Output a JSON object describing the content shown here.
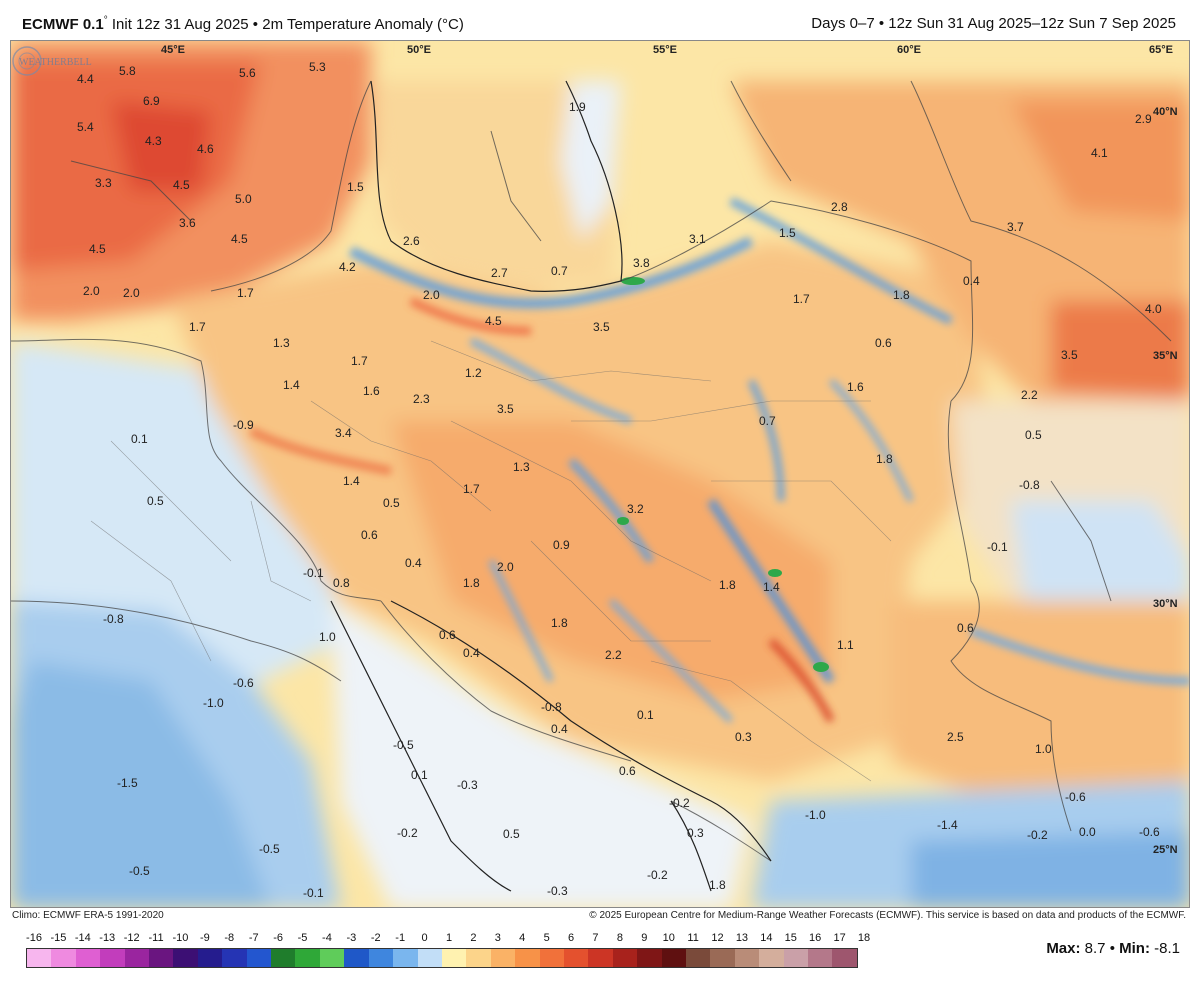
{
  "header": {
    "model": "ECMWF 0.1",
    "degree": "°",
    "title_rest": "Init 12z 31 Aug 2025 • 2m Temperature Anomaly (°C)",
    "period": "Days 0–7 • 12z Sun 31 Aug 2025–12z Sun 7 Sep 2025"
  },
  "map": {
    "lon_labels": [
      "45°E",
      "50°E",
      "55°E",
      "60°E",
      "65°E"
    ],
    "lat_labels": [
      "40°N",
      "35°N",
      "30°N",
      "25°N"
    ],
    "anomaly_labels": [
      {
        "v": "4.4"
      },
      {
        "v": "5.8"
      },
      {
        "v": "6.9"
      },
      {
        "v": "5.6"
      },
      {
        "v": "5.3"
      },
      {
        "v": "5.4"
      },
      {
        "v": "4.3"
      },
      {
        "v": "4.6"
      },
      {
        "v": "3.3"
      },
      {
        "v": "4.5"
      },
      {
        "v": "5.0"
      },
      {
        "v": "3.6"
      },
      {
        "v": "4.5"
      },
      {
        "v": "4.5"
      },
      {
        "v": "4.2"
      },
      {
        "v": "2.0"
      },
      {
        "v": "2.0"
      },
      {
        "v": "1.7"
      },
      {
        "v": "1.7"
      },
      {
        "v": "1.3"
      },
      {
        "v": "1.5"
      },
      {
        "v": "2.6"
      },
      {
        "v": "2.7"
      },
      {
        "v": "0.7"
      },
      {
        "v": "3.8"
      },
      {
        "v": "3.1"
      },
      {
        "v": "1.5"
      },
      {
        "v": "2.8"
      },
      {
        "v": "1.9"
      },
      {
        "v": "2.9"
      },
      {
        "v": "4.1"
      },
      {
        "v": "3.7"
      },
      {
        "v": "2.0"
      },
      {
        "v": "4.5"
      },
      {
        "v": "3.5"
      },
      {
        "v": "1.7"
      },
      {
        "v": "1.8"
      },
      {
        "v": "0.4"
      },
      {
        "v": "4.0"
      },
      {
        "v": "0.6"
      },
      {
        "v": "3.5"
      },
      {
        "v": "1.7"
      },
      {
        "v": "1.2"
      },
      {
        "v": "1.4"
      },
      {
        "v": "1.6"
      },
      {
        "v": "2.3"
      },
      {
        "v": "3.5"
      },
      {
        "v": "1.6"
      },
      {
        "v": "2.2"
      },
      {
        "v": "0.1"
      },
      {
        "v": "-0.9"
      },
      {
        "v": "3.4"
      },
      {
        "v": "0.7"
      },
      {
        "v": "0.5"
      },
      {
        "v": "1.8"
      },
      {
        "v": "1.3"
      },
      {
        "v": "1.4"
      },
      {
        "v": "1.7"
      },
      {
        "v": "0.5"
      },
      {
        "v": "3.2"
      },
      {
        "v": "-0.8"
      },
      {
        "v": "0.5"
      },
      {
        "v": "0.6"
      },
      {
        "v": "0.9"
      },
      {
        "v": "-0.1"
      },
      {
        "v": "0.4"
      },
      {
        "v": "1.8"
      },
      {
        "v": "2.0"
      },
      {
        "v": "1.8"
      },
      {
        "v": "1.4"
      },
      {
        "v": "-0.1"
      },
      {
        "v": "0.8"
      },
      {
        "v": "-0.8"
      },
      {
        "v": "1.8"
      },
      {
        "v": "0.6"
      },
      {
        "v": "1.0"
      },
      {
        "v": "0.6"
      },
      {
        "v": "0.4"
      },
      {
        "v": "2.2"
      },
      {
        "v": "1.1"
      },
      {
        "v": "-0.6"
      },
      {
        "v": "-1.0"
      },
      {
        "v": "-0.8"
      },
      {
        "v": "0.4"
      },
      {
        "v": "0.1"
      },
      {
        "v": "2.5"
      },
      {
        "v": "-0.5"
      },
      {
        "v": "0.3"
      },
      {
        "v": "1.0"
      },
      {
        "v": "0.1"
      },
      {
        "v": "0.6"
      },
      {
        "v": "-1.5"
      },
      {
        "v": "-0.3"
      },
      {
        "v": "-0.2"
      },
      {
        "v": "-0.6"
      },
      {
        "v": "-1.0"
      },
      {
        "v": "-1.4"
      },
      {
        "v": "-0.2"
      },
      {
        "v": "0.0"
      },
      {
        "v": "-0.6"
      },
      {
        "v": "-0.2"
      },
      {
        "v": "0.5"
      },
      {
        "v": "0.3"
      },
      {
        "v": "-0.5"
      },
      {
        "v": "-0.5"
      },
      {
        "v": "-0.1"
      },
      {
        "v": "-0.3"
      },
      {
        "v": "-0.2"
      },
      {
        "v": "1.8"
      }
    ]
  },
  "credits": {
    "climo": "Climo: ECMWF ERA-5 1991-2020",
    "copyright": "© 2025 European Centre for Medium-Range Weather Forecasts (ECMWF). This service is based on data and products of the ECMWF."
  },
  "colorbar": {
    "ticks": [
      "-16",
      "-15",
      "-14",
      "-13",
      "-12",
      "-11",
      "-10",
      "-9",
      "-8",
      "-7",
      "-6",
      "-5",
      "-4",
      "-3",
      "-2",
      "-1",
      "0",
      "1",
      "2",
      "3",
      "4",
      "5",
      "6",
      "7",
      "8",
      "9",
      "10",
      "11",
      "12",
      "13",
      "14",
      "15",
      "16",
      "17",
      "18"
    ],
    "colors": [
      "#f7b6ee",
      "#ef8ae0",
      "#df5fd2",
      "#c23dbc",
      "#9a259f",
      "#6a1580",
      "#3c0f74",
      "#251c8e",
      "#2534b4",
      "#2356cf",
      "#1f7d2c",
      "#2fa838",
      "#5fcc5a",
      "#1f58c8",
      "#3f86de",
      "#7ab6ee",
      "#c2def7",
      "#fff2b0",
      "#fcd48a",
      "#fab266",
      "#f79248",
      "#f1713a",
      "#e4512e",
      "#cc3525",
      "#a8221c",
      "#7f1616",
      "#5f1010",
      "#7a4a3a",
      "#9a6a56",
      "#b98c78",
      "#d4ae9c",
      "#caa0a8",
      "#b4788a",
      "#9e566e"
    ]
  },
  "stats": {
    "max_label": "Max:",
    "max_value": "8.7",
    "sep": "•",
    "min_label": "Min:",
    "min_value": "-8.1"
  },
  "watermark": "WEATHERBELL"
}
